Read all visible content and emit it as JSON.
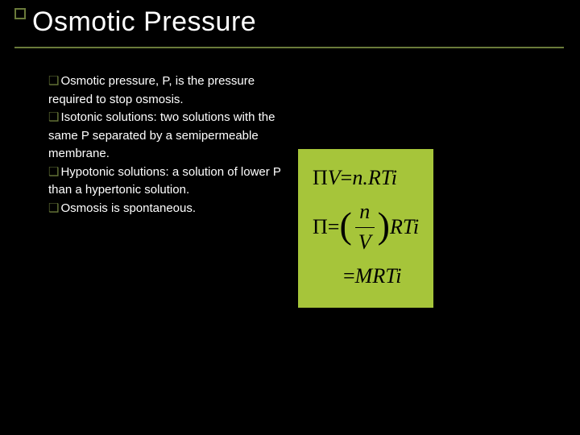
{
  "slide": {
    "title": "Osmotic Pressure",
    "accent_color": "#6a7a3a",
    "background_color": "#000000",
    "text_color": "#ffffff",
    "title_fontsize": 34,
    "body_fontsize": 15
  },
  "bullets": [
    {
      "lead": "Osmotic",
      "rest": " pressure, P, is the pressure required to stop osmosis."
    },
    {
      "lead": "Isotonic",
      "rest": " solutions: two solutions with the same P separated by a semipermeable membrane."
    },
    {
      "lead": "Hypotonic",
      "rest": " solutions: a solution of lower P than a hypertonic solution."
    },
    {
      "lead": "Osmosis",
      "rest": " is spontaneous."
    }
  ],
  "equations": {
    "box_background": "#a6c53a",
    "text_color": "#000000",
    "fontsize": 26,
    "font_family": "Times New Roman, serif",
    "lines": [
      {
        "type": "inline",
        "lhs": "Π",
        "lhs_var": "V",
        "eq": " = ",
        "rhs": "n.RTi"
      },
      {
        "type": "frac",
        "lhs": "Π",
        "eq": " = ",
        "num": "n",
        "den": "V",
        "tail": "RTi"
      },
      {
        "type": "inline_indent",
        "eq": "= ",
        "rhs": "MRTi"
      }
    ]
  }
}
